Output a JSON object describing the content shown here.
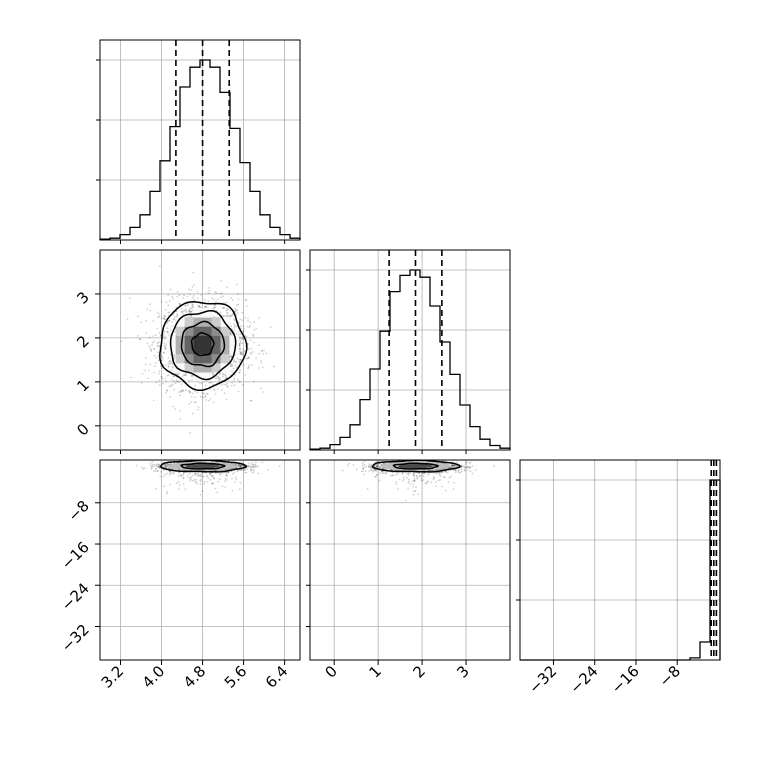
{
  "chart_data": {
    "type": "corner",
    "parameters": [
      {
        "name": "",
        "range": [
          2.8,
          6.7
        ],
        "ticks": [
          3.2,
          4.0,
          4.8,
          5.6,
          6.4
        ],
        "tick_labels": [
          "3.2",
          "4.0",
          "4.8",
          "5.6",
          "6.4"
        ],
        "quantiles": [
          4.28,
          4.8,
          5.32
        ],
        "hist": {
          "bin_edges": [
            2.8,
            2.995,
            3.19,
            3.385,
            3.58,
            3.775,
            3.97,
            4.165,
            4.36,
            4.555,
            4.75,
            4.945,
            5.14,
            5.335,
            5.53,
            5.725,
            5.92,
            6.115,
            6.31,
            6.505,
            6.7
          ],
          "counts": [
            0.005,
            0.01,
            0.03,
            0.07,
            0.14,
            0.27,
            0.44,
            0.63,
            0.85,
            0.96,
            1.0,
            0.96,
            0.82,
            0.62,
            0.43,
            0.27,
            0.14,
            0.07,
            0.03,
            0.01
          ]
        }
      },
      {
        "name": "",
        "range": [
          -0.55,
          4.0
        ],
        "ticks": [
          0,
          1,
          2,
          3
        ],
        "tick_labels": [
          "0",
          "1",
          "2",
          "3"
        ],
        "quantiles": [
          1.25,
          1.85,
          2.45
        ],
        "hist": {
          "bin_edges": [
            -0.55,
            -0.3225,
            -0.095,
            0.1325,
            0.36,
            0.5875,
            0.815,
            1.0425,
            1.27,
            1.4975,
            1.725,
            1.9525,
            2.18,
            2.4075,
            2.635,
            2.8625,
            3.09,
            3.3175,
            3.545,
            3.7725,
            4.0
          ],
          "counts": [
            0.005,
            0.01,
            0.03,
            0.07,
            0.14,
            0.28,
            0.45,
            0.66,
            0.88,
            0.97,
            1.0,
            0.96,
            0.8,
            0.6,
            0.42,
            0.25,
            0.13,
            0.06,
            0.025,
            0.01
          ]
        }
      },
      {
        "name": "",
        "range": [
          -38.5,
          0.3
        ],
        "ticks": [
          -32,
          -24,
          -16,
          -8
        ],
        "tick_labels": [
          "−32",
          "−24",
          "−16",
          "−8"
        ],
        "quantiles": [
          -1.4,
          -0.9,
          -0.4
        ],
        "hist": {
          "bin_edges": [
            -38.5,
            -36.56,
            -34.62,
            -32.68,
            -30.74,
            -28.8,
            -26.86,
            -24.92,
            -22.98,
            -21.04,
            -19.1,
            -17.16,
            -15.22,
            -13.28,
            -11.34,
            -9.4,
            -7.46,
            -5.52,
            -3.58,
            -1.64,
            0.3
          ],
          "counts": [
            0,
            0,
            0,
            0,
            0,
            0,
            0,
            0,
            0,
            0,
            0,
            0,
            0,
            0,
            0,
            0,
            0,
            0.012,
            0.1,
            1.0
          ]
        }
      }
    ],
    "pairs": [
      {
        "x": 0,
        "y": 1,
        "center": [
          4.8,
          1.85
        ],
        "sigma": [
          0.42,
          0.5
        ],
        "contour_levels": [
          0.12,
          0.39,
          0.68,
          0.86
        ],
        "density_gray_max": 0.85
      },
      {
        "x": 0,
        "y": 2,
        "center": [
          4.8,
          -0.9
        ],
        "sigma": [
          0.42,
          0.55
        ],
        "contour_levels": [
          0.39,
          0.86
        ],
        "tail_to": -6
      },
      {
        "x": 1,
        "y": 2,
        "center": [
          1.85,
          -0.9
        ],
        "sigma": [
          0.5,
          0.55
        ],
        "contour_levels": [
          0.39,
          0.86
        ],
        "tail_to": -6
      }
    ],
    "grid": true,
    "legend": "none"
  }
}
